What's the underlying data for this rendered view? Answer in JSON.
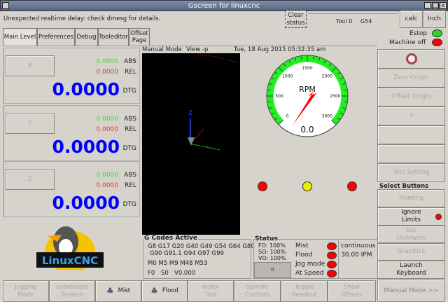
{
  "window": {
    "title": "Gscreen for linuxcnc"
  },
  "status_bar": {
    "message": "Unexpected realtime delay: check dmesg for details.",
    "clear_status": "Clear status",
    "tool": "Tool 0",
    "coord": "G54",
    "calc": "calc",
    "units": "Inch"
  },
  "tabs": [
    "Main Level",
    "Preferences",
    "Debug",
    "Tooleditor",
    "Offset Page"
  ],
  "dro": [
    {
      "axis": "X",
      "abs": "0.0000",
      "rel": "0.0000",
      "dtg": "0.0000"
    },
    {
      "axis": "Y",
      "abs": "0.0000",
      "rel": "0.0000",
      "dtg": "0.0000"
    },
    {
      "axis": "Z",
      "abs": "0.0000",
      "rel": "0.0000",
      "dtg": "0.0000"
    }
  ],
  "dro_labels": {
    "abs": "ABS",
    "rel": "REL",
    "dtg": "DTG"
  },
  "logo": "LinuxCNC",
  "header": {
    "mode": "Manual Mode",
    "view": "View -p",
    "datetime": "Tue, 18 Aug 2015  05:32:35 am"
  },
  "preview": {
    "axis_z": "Z"
  },
  "gauge": {
    "label": "RPM",
    "value": "0.0",
    "ticks": [
      "0",
      "500",
      "1000",
      "1500",
      "2000",
      "2500",
      "3000"
    ],
    "max": 3000
  },
  "lights": [
    "red",
    "yellow",
    "red"
  ],
  "gcodes": {
    "title": "G Codes Active",
    "line1": "G8 G17 G20 G40 G49 G54 G64 G80",
    "line2": "G90 G91.1 G94 G97 G99",
    "mcodes": "M0 M5 M9 M48 M53",
    "f": "F0",
    "s": "S0",
    "v": "V0.000"
  },
  "status": {
    "title": "Status",
    "fo": "FO: 100%",
    "so": "SO: 100%",
    "vo": "VO: 100%",
    "box": "0",
    "mist": "Mist",
    "flood": "Flood",
    "jog_mode": "Jog mode",
    "at_speed": "At Speed",
    "jog_type": "continuous",
    "jog_rate": "30.00 IPM"
  },
  "right": {
    "estop": "Estop",
    "machine": "Machine off",
    "zero_origin": "Zero Origin",
    "offset_origin": "Offset Origin",
    "plus": "+",
    "minus": "-",
    "tool_setting": "Tool Setting",
    "select_buttons": "Select Buttons",
    "homing": "Homing",
    "ignore_limits": "Ignore Limits",
    "set_overwise": "Set Overwise",
    "graphics": "Graphics",
    "launch_keyboard": "Launch Keyboard",
    "manual_mode": "Manual Mode >>"
  },
  "bottom": [
    "Jogging Mode",
    "coordinate System",
    "Mist",
    "Flood",
    "Index Tool",
    "Spindle Controls",
    "Toggle Readout",
    "Show Offsets"
  ]
}
